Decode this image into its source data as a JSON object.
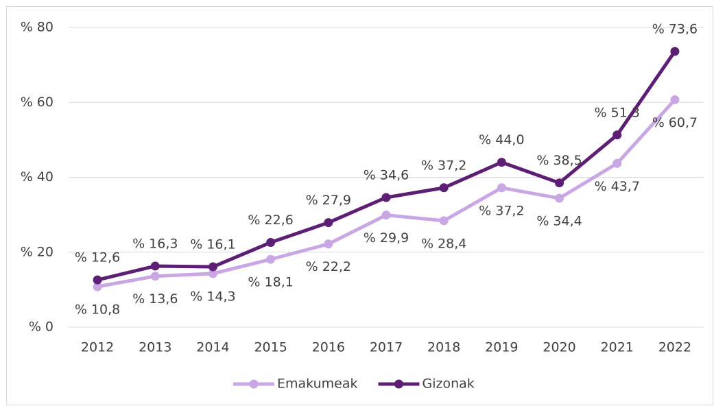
{
  "chart_data": {
    "type": "line",
    "categories": [
      "2012",
      "2013",
      "2014",
      "2015",
      "2016",
      "2017",
      "2018",
      "2019",
      "2020",
      "2021",
      "2022"
    ],
    "series": [
      {
        "name": "Emakumeak",
        "color": "#c9a6e4",
        "values": [
          10.8,
          13.6,
          14.3,
          18.1,
          22.2,
          29.9,
          28.4,
          37.2,
          34.4,
          43.7,
          60.7
        ],
        "value_labels": [
          "% 10,8",
          "% 13,6",
          "% 14,3",
          "% 18,1",
          "% 22,2",
          "% 29,9",
          "% 28,4",
          "% 37,2",
          "% 34,4",
          "% 43,7",
          "% 60,7"
        ]
      },
      {
        "name": "Gizonak",
        "color": "#5c1f74",
        "values": [
          12.6,
          16.3,
          16.1,
          22.6,
          27.9,
          34.6,
          37.2,
          44.0,
          38.5,
          51.3,
          73.6
        ],
        "value_labels": [
          "% 12,6",
          "% 16,3",
          "% 16,1",
          "% 22,6",
          "% 27,9",
          "% 34,6",
          "% 37,2",
          "% 44,0",
          "% 38,5",
          "% 51,3",
          "% 73,6"
        ]
      }
    ],
    "ylim": [
      0,
      80
    ],
    "yticks": [
      {
        "value": 0,
        "label": "% 0"
      },
      {
        "value": 20,
        "label": "% 20"
      },
      {
        "value": 40,
        "label": "% 40"
      },
      {
        "value": 60,
        "label": "% 60"
      },
      {
        "value": 80,
        "label": "% 80"
      }
    ],
    "grid": true,
    "legend": "bottom"
  }
}
